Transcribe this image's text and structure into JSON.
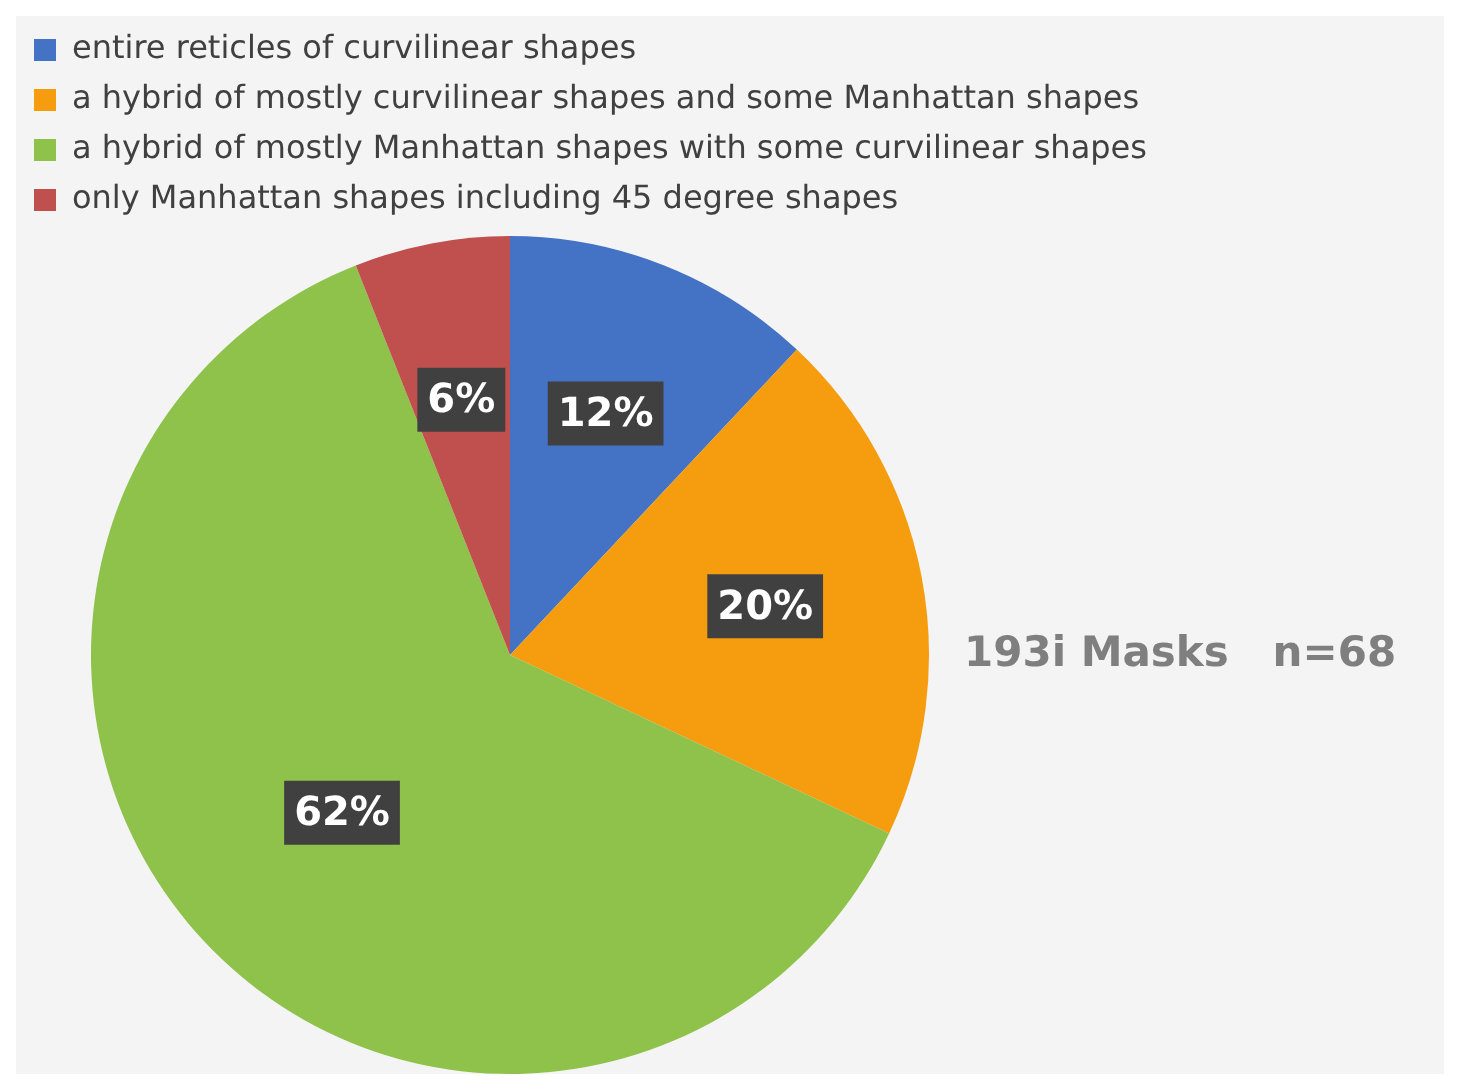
{
  "chart_data": {
    "type": "pie",
    "categories": [
      "entire reticles of curvilinear shapes",
      "a hybrid of mostly curvilinear shapes and some Manhattan shapes",
      "a hybrid of mostly Manhattan shapes with some curvilinear shapes",
      "only Manhattan shapes including 45 degree shapes"
    ],
    "values": [
      12,
      20,
      62,
      6
    ],
    "value_labels": [
      "12%",
      "20%",
      "62%",
      "6%"
    ],
    "colors": [
      "#4472c4",
      "#f59d0f",
      "#8ec24a",
      "#c0504d"
    ],
    "legend": "top",
    "annotations": [
      "193i Masks   n=68"
    ]
  }
}
